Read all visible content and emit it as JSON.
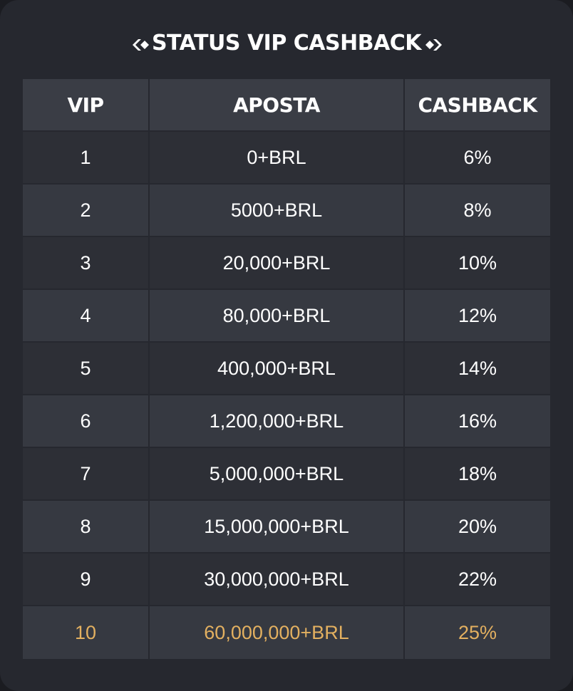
{
  "header": {
    "title": "STATUS VIP CASHBACK"
  },
  "colors": {
    "background": "#26282f",
    "header_row": "#3a3d45",
    "row_dark": "#2d2f36",
    "row_light": "#363941",
    "highlight_text": "#e3b060",
    "text": "#ffffff"
  },
  "table": {
    "columns": [
      "VIP",
      "APOSTA",
      "CASHBACK"
    ],
    "rows": [
      {
        "vip": "1",
        "aposta": "0+BRL",
        "cashback": "6%"
      },
      {
        "vip": "2",
        "aposta": "5000+BRL",
        "cashback": "8%"
      },
      {
        "vip": "3",
        "aposta": "20,000+BRL",
        "cashback": "10%"
      },
      {
        "vip": "4",
        "aposta": "80,000+BRL",
        "cashback": "12%"
      },
      {
        "vip": "5",
        "aposta": "400,000+BRL",
        "cashback": "14%"
      },
      {
        "vip": "6",
        "aposta": "1,200,000+BRL",
        "cashback": "16%"
      },
      {
        "vip": "7",
        "aposta": "5,000,000+BRL",
        "cashback": "18%"
      },
      {
        "vip": "8",
        "aposta": "15,000,000+BRL",
        "cashback": "20%"
      },
      {
        "vip": "9",
        "aposta": "30,000,000+BRL",
        "cashback": "22%"
      },
      {
        "vip": "10",
        "aposta": "60,000,000+BRL",
        "cashback": "25%"
      }
    ]
  }
}
